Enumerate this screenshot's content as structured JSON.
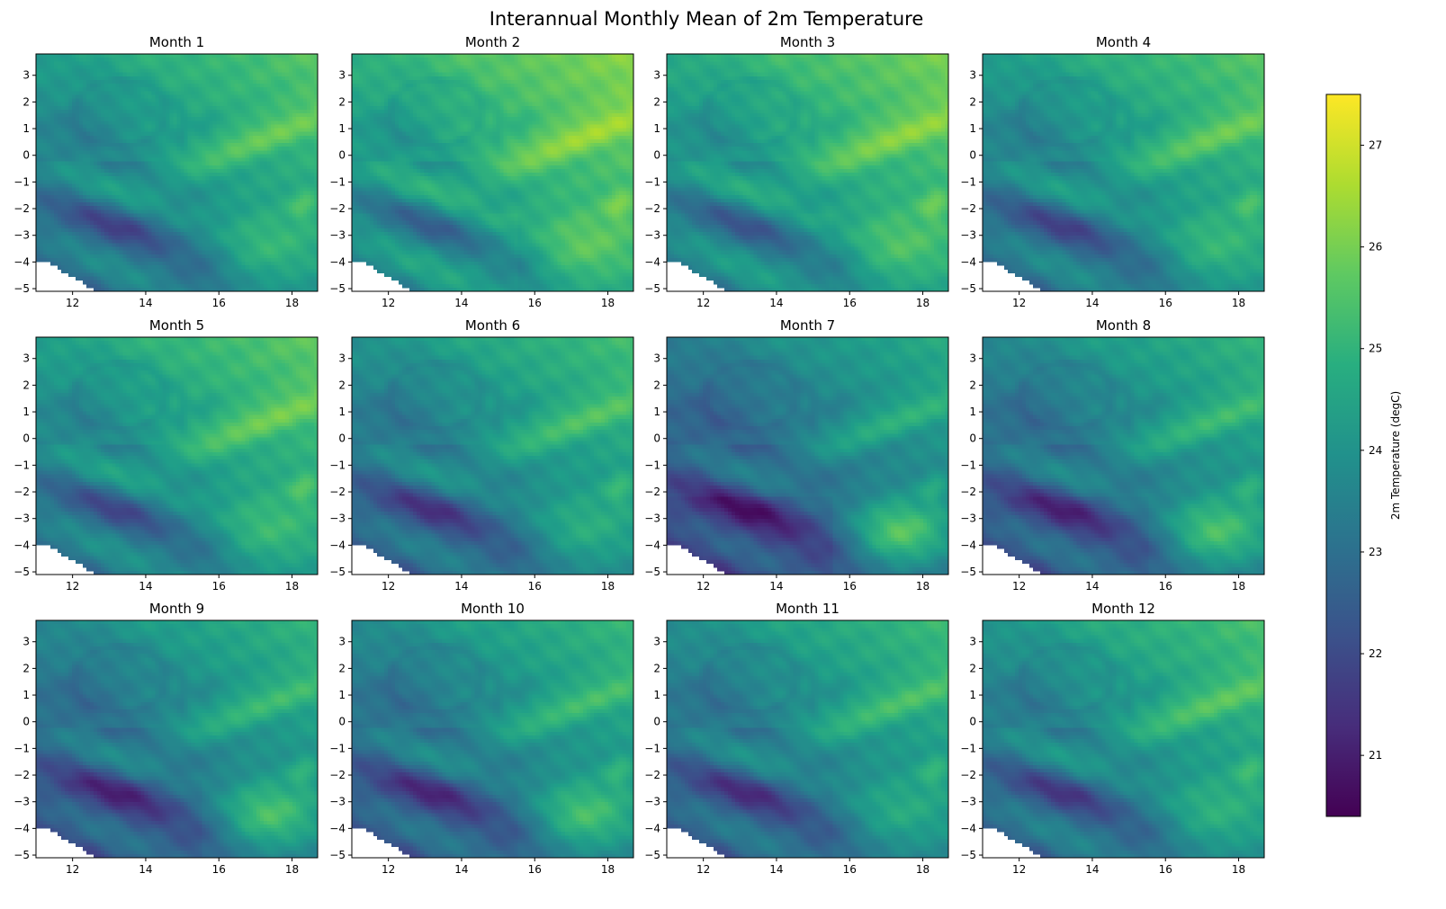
{
  "chart_data": {
    "type": "heatmap",
    "title": "Interannual Monthly Mean of 2m Temperature",
    "colormap": "viridis",
    "panels": [
      {
        "title": "Month 1",
        "offset": 0.0
      },
      {
        "title": "Month 2",
        "offset": 0.6
      },
      {
        "title": "Month 3",
        "offset": 0.4
      },
      {
        "title": "Month 4",
        "offset": 0.0
      },
      {
        "title": "Month 5",
        "offset": 0.1
      },
      {
        "title": "Month 6",
        "offset": -0.3
      },
      {
        "title": "Month 7",
        "offset": -0.9
      },
      {
        "title": "Month 8",
        "offset": -0.6
      },
      {
        "title": "Month 9",
        "offset": -0.6
      },
      {
        "title": "Month 10",
        "offset": -0.5
      },
      {
        "title": "Month 11",
        "offset": -0.4
      },
      {
        "title": "Month 12",
        "offset": -0.2
      }
    ],
    "x_range": [
      11.0,
      18.7
    ],
    "y_range": [
      -5.1,
      3.8
    ],
    "x_ticks": [
      12,
      14,
      16,
      18
    ],
    "x_tick_labels": [
      "12",
      "14",
      "16",
      "18"
    ],
    "y_ticks": [
      -5,
      -4,
      -3,
      -2,
      -1,
      0,
      1,
      2,
      3
    ],
    "y_tick_labels": [
      "−5",
      "−4",
      "−3",
      "−2",
      "−1",
      "0",
      "1",
      "2",
      "3"
    ],
    "colorbar": {
      "label": "2m Temperature (degC)",
      "range": [
        20.4,
        27.5
      ],
      "ticks": [
        21,
        22,
        23,
        24,
        25,
        26,
        27
      ],
      "tick_labels": [
        "21",
        "22",
        "23",
        "24",
        "25",
        "26",
        "27"
      ]
    }
  }
}
